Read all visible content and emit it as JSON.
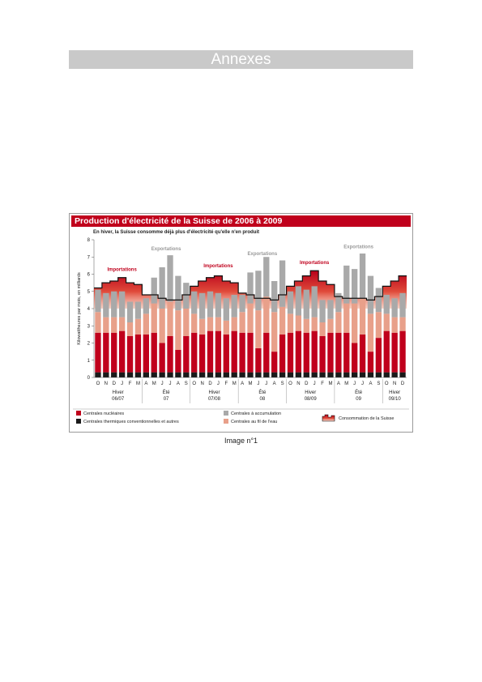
{
  "page": {
    "banner_title": "Annexes",
    "caption": "Image n°1"
  },
  "chart_data": {
    "type": "bar",
    "stacked": true,
    "title": "Production d'électricité de la Suisse de 2006 à 2009",
    "subtitle": "En hiver, la Suisse consomme déjà plus d'électricité qu'elle n'en produit",
    "ylabel": "Kilowattheures par mois, en milliards",
    "ylim": [
      0,
      8
    ],
    "yticks": [
      0,
      1,
      2,
      3,
      4,
      5,
      6,
      7,
      8
    ],
    "categories": [
      "O",
      "N",
      "D",
      "J",
      "F",
      "M",
      "A",
      "M",
      "J",
      "J",
      "A",
      "S",
      "O",
      "N",
      "D",
      "J",
      "F",
      "M",
      "A",
      "M",
      "J",
      "J",
      "A",
      "S",
      "O",
      "N",
      "D",
      "J",
      "F",
      "M",
      "A",
      "M",
      "J",
      "J",
      "A",
      "S",
      "O",
      "N",
      "D"
    ],
    "periods": [
      {
        "label": "Hiver",
        "sublabel": "06/07",
        "start": 0,
        "end": 5
      },
      {
        "label": "Été",
        "sublabel": "07",
        "start": 6,
        "end": 11
      },
      {
        "label": "Hiver",
        "sublabel": "07/08",
        "start": 12,
        "end": 17
      },
      {
        "label": "Été",
        "sublabel": "08",
        "start": 18,
        "end": 23
      },
      {
        "label": "Hiver",
        "sublabel": "08/09",
        "start": 24,
        "end": 29
      },
      {
        "label": "Été",
        "sublabel": "09",
        "start": 30,
        "end": 35
      },
      {
        "label": "Hiver",
        "sublabel": "09/10",
        "start": 36,
        "end": 38
      }
    ],
    "series": [
      {
        "name": "Centrales thermiques conventionnelles et autres",
        "color": "#1a1a1a",
        "values": [
          0.3,
          0.3,
          0.3,
          0.3,
          0.3,
          0.3,
          0.3,
          0.3,
          0.3,
          0.3,
          0.3,
          0.3,
          0.3,
          0.3,
          0.3,
          0.3,
          0.3,
          0.3,
          0.3,
          0.3,
          0.3,
          0.3,
          0.3,
          0.3,
          0.3,
          0.3,
          0.3,
          0.3,
          0.3,
          0.3,
          0.3,
          0.3,
          0.3,
          0.3,
          0.3,
          0.3,
          0.3,
          0.3,
          0.3
        ]
      },
      {
        "name": "Centrales nucléaires",
        "color": "#c0001c",
        "values": [
          2.3,
          2.3,
          2.3,
          2.4,
          2.1,
          2.2,
          2.2,
          2.3,
          1.7,
          2.1,
          1.3,
          2.1,
          2.3,
          2.2,
          2.4,
          2.4,
          2.2,
          2.4,
          2.3,
          2.3,
          1.4,
          2.3,
          1.2,
          2.2,
          2.3,
          2.4,
          2.3,
          2.4,
          2.1,
          2.3,
          2.3,
          2.3,
          1.7,
          2.2,
          1.2,
          2.0,
          2.4,
          2.3,
          2.4
        ]
      },
      {
        "name": "Centrales au fil de l'eau",
        "color": "#e8a08a",
        "values": [
          1.2,
          0.9,
          0.9,
          0.8,
          0.8,
          0.9,
          1.2,
          1.7,
          2.0,
          2.0,
          2.3,
          1.6,
          1.1,
          0.9,
          0.8,
          0.8,
          0.8,
          0.8,
          1.2,
          1.7,
          2.2,
          2.1,
          2.3,
          1.6,
          1.1,
          0.9,
          0.8,
          0.8,
          0.8,
          0.8,
          1.2,
          1.7,
          2.3,
          2.1,
          2.2,
          1.5,
          1.0,
          0.9,
          0.8
        ]
      },
      {
        "name": "Centrales à accumulation",
        "color": "#a9a9a9",
        "values": [
          1.3,
          1.4,
          1.5,
          1.5,
          1.2,
          1.0,
          0.9,
          1.5,
          2.4,
          2.7,
          2.0,
          1.5,
          1.3,
          1.5,
          1.5,
          1.4,
          1.3,
          1.3,
          1.0,
          1.8,
          2.3,
          2.3,
          1.8,
          2.7,
          1.3,
          1.7,
          1.7,
          1.8,
          1.3,
          1.1,
          1.1,
          2.2,
          2.0,
          2.6,
          2.2,
          1.4,
          1.1,
          1.1,
          1.4
        ]
      }
    ],
    "consumption": {
      "name": "Consommation de la Suisse",
      "values": [
        5.2,
        5.5,
        5.6,
        5.8,
        5.5,
        5.4,
        4.8,
        4.8,
        4.6,
        4.5,
        4.5,
        4.8,
        5.3,
        5.6,
        5.8,
        5.9,
        5.6,
        5.5,
        4.9,
        4.8,
        4.6,
        4.6,
        4.5,
        4.8,
        5.3,
        5.6,
        5.9,
        6.2,
        5.6,
        5.4,
        4.7,
        4.6,
        4.6,
        4.6,
        4.5,
        4.7,
        5.3,
        5.6,
        5.9
      ]
    },
    "annotations": [
      {
        "text": "Importations",
        "index": 3,
        "y": 6.2,
        "color": "#c0001c"
      },
      {
        "text": "Exportations",
        "index": 8.5,
        "y": 7.4,
        "color": "#999999"
      },
      {
        "text": "Importations",
        "index": 15,
        "y": 6.4,
        "color": "#c0001c"
      },
      {
        "text": "Exportations",
        "index": 20.5,
        "y": 7.1,
        "color": "#999999"
      },
      {
        "text": "Importations",
        "index": 27,
        "y": 6.6,
        "color": "#c0001c"
      },
      {
        "text": "Exportations",
        "index": 32.5,
        "y": 7.5,
        "color": "#999999"
      }
    ],
    "legend": {
      "position": "bottom",
      "items": [
        {
          "label": "Centrales nucléaires",
          "color": "#c0001c"
        },
        {
          "label": "Centrales thermiques conventionnelles et autres",
          "color": "#1a1a1a"
        },
        {
          "label": "Centrales à accumulation",
          "color": "#a9a9a9"
        },
        {
          "label": "Centrales au fil de l'eau",
          "color": "#e8a08a"
        },
        {
          "label": "Consommation de la Suisse",
          "color": "#c0001c"
        }
      ]
    }
  }
}
